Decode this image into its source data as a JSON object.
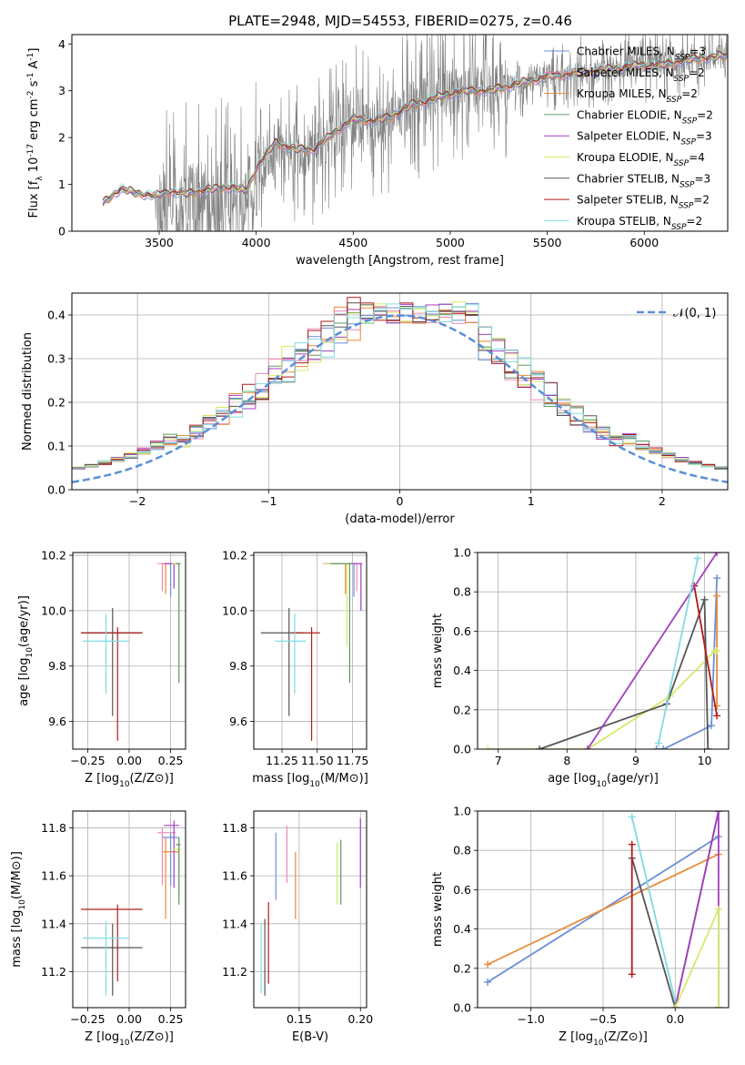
{
  "figure": {
    "title": "PLATE=2948, MJD=54553, FIBERID=0275, z=0.46"
  },
  "model_legend": [
    {
      "name": "Chabrier MILES",
      "nssp": "3",
      "color": "#6a8fd8"
    },
    {
      "name": "Salpeter MILES",
      "nssp": "2",
      "color": "#ee8ab6"
    },
    {
      "name": "Kroupa MILES",
      "nssp": "2",
      "color": "#ea8a3a"
    },
    {
      "name": "Chabrier ELODIE",
      "nssp": "2",
      "color": "#5e9a5e"
    },
    {
      "name": "Salpeter ELODIE",
      "nssp": "3",
      "color": "#a33fbf"
    },
    {
      "name": "Kroupa ELODIE",
      "nssp": "4",
      "color": "#d7e86a"
    },
    {
      "name": "Chabrier STELIB",
      "nssp": "3",
      "color": "#555555"
    },
    {
      "name": "Salpeter STELIB",
      "nssp": "2",
      "color": "#b01c1c"
    },
    {
      "name": "Kroupa STELIB",
      "nssp": "2",
      "color": "#7fdbe2"
    }
  ],
  "chart_data": [
    {
      "id": "spectrum",
      "type": "line",
      "xlabel": "wavelength [Angstrom, rest frame]",
      "ylabel": "Flux [f_λ 10^-17 erg cm^-2 s^-1 A^-1]",
      "xlim": [
        3050,
        6430
      ],
      "ylim": [
        0,
        4.2
      ],
      "xticks": [
        3500,
        4000,
        4500,
        5000,
        5500,
        6000
      ],
      "yticks": [
        0,
        1,
        2,
        3,
        4
      ],
      "grid": false,
      "legend_position": "top-right",
      "data_series": {
        "name": "data",
        "color": "#808080",
        "x_start": 3210,
        "x_end": 6430
      },
      "model_continuum": {
        "x": [
          3210,
          3300,
          3400,
          3480,
          3550,
          3650,
          3750,
          3800,
          3870,
          3950,
          4000,
          4100,
          4200,
          4300,
          4400,
          4500,
          4600,
          4700,
          4800,
          4900,
          5000,
          5100,
          5200,
          5300,
          5400,
          5500,
          5600,
          5700,
          5800,
          5900,
          6000,
          6100,
          6200,
          6300,
          6430
        ],
        "y": [
          0.6,
          0.9,
          0.8,
          0.75,
          0.85,
          0.8,
          0.9,
          0.9,
          0.95,
          0.85,
          1.35,
          1.9,
          1.75,
          1.75,
          2.1,
          2.4,
          2.35,
          2.45,
          2.7,
          2.8,
          2.95,
          3.0,
          3.0,
          3.1,
          3.2,
          3.3,
          3.35,
          3.4,
          3.45,
          3.5,
          3.55,
          3.55,
          3.65,
          3.7,
          3.75
        ]
      }
    },
    {
      "id": "residuals",
      "type": "histogram",
      "xlabel": "(data-model)/error",
      "ylabel": "Normed distribution",
      "xlim": [
        -2.5,
        2.5
      ],
      "ylim": [
        0,
        0.45
      ],
      "xticks": [
        -2,
        -1,
        0,
        1,
        2
      ],
      "yticks": [
        0.0,
        0.1,
        0.2,
        0.3,
        0.4
      ],
      "grid": true,
      "legend_position": "top-right",
      "normal_curve": {
        "name": "𝒩(0, 1)",
        "color": "#5b8fd8",
        "style": "dashed"
      },
      "bin_start": -2.5,
      "bin_width": 0.1
    },
    {
      "id": "age_vs_Z",
      "type": "errorbar",
      "xlabel": "Z [log10(Z/Z⊙)]",
      "ylabel": "age  [log10(age/yr)]",
      "xlim": [
        -0.34,
        0.34
      ],
      "ylim": [
        9.5,
        10.21
      ],
      "xticks": [
        -0.25,
        0.0,
        0.25
      ],
      "yticks": [
        9.6,
        9.8,
        10.0,
        10.2
      ],
      "grid": true,
      "points": [
        {
          "model": "Chabrier STELIB",
          "x": -0.1,
          "y": 9.92,
          "xerr": [
            0.19,
            0.18
          ],
          "yerr": [
            0.3,
            0.09
          ]
        },
        {
          "model": "Salpeter STELIB",
          "x": -0.07,
          "y": 9.92,
          "xerr": [
            0.22,
            0.15
          ],
          "yerr": [
            0.39,
            0.02
          ]
        },
        {
          "model": "Kroupa STELIB",
          "x": -0.14,
          "y": 9.89,
          "xerr": [
            0.14,
            0.14
          ],
          "yerr": [
            0.19,
            0.1
          ]
        },
        {
          "model": "Chabrier MILES",
          "x": 0.25,
          "y": 10.17,
          "xerr": [
            0.05,
            0.05
          ],
          "yerr": [
            0.12,
            0.0
          ]
        },
        {
          "model": "Kroupa MILES",
          "x": 0.22,
          "y": 10.17,
          "xerr": [
            0.02,
            0.08
          ],
          "yerr": [
            0.11,
            0.0
          ]
        },
        {
          "model": "Salpeter MILES",
          "x": 0.2,
          "y": 10.17,
          "xerr": [
            0.03,
            0.08
          ],
          "yerr": [
            0.1,
            0.0
          ]
        },
        {
          "model": "Salpeter ELODIE",
          "x": 0.27,
          "y": 10.17,
          "xerr": [
            0.06,
            0.03
          ],
          "yerr": [
            0.09,
            0.0
          ]
        },
        {
          "model": "Kroupa ELODIE",
          "x": 0.3,
          "y": 10.17,
          "xerr": [
            0.04,
            0.01
          ],
          "yerr": [
            0.29,
            0.0
          ]
        },
        {
          "model": "Chabrier ELODIE",
          "x": 0.3,
          "y": 10.17,
          "xerr": [
            0.02,
            0.01
          ],
          "yerr": [
            0.43,
            0.0
          ]
        }
      ]
    },
    {
      "id": "age_vs_mass",
      "type": "errorbar",
      "xlabel": "mass [log10(M/M⊙)]",
      "ylabel": "",
      "xlim": [
        11.05,
        11.85
      ],
      "ylim": [
        9.5,
        10.21
      ],
      "xticks": [
        11.25,
        11.5,
        11.75
      ],
      "yticks": [
        9.6,
        9.8,
        10.0,
        10.2
      ],
      "grid": true,
      "points": [
        {
          "model": "Chabrier STELIB",
          "x": 11.3,
          "y": 9.92,
          "xerr": [
            0.2,
            0.1
          ],
          "yerr": [
            0.3,
            0.09
          ]
        },
        {
          "model": "Salpeter STELIB",
          "x": 11.46,
          "y": 9.92,
          "xerr": [
            0.14,
            0.06
          ],
          "yerr": [
            0.39,
            0.02
          ]
        },
        {
          "model": "Kroupa STELIB",
          "x": 11.34,
          "y": 9.89,
          "xerr": [
            0.14,
            0.08
          ],
          "yerr": [
            0.19,
            0.1
          ]
        },
        {
          "model": "Chabrier MILES",
          "x": 11.76,
          "y": 10.17,
          "xerr": [
            0.2,
            0.04
          ],
          "yerr": [
            0.12,
            0.0
          ]
        },
        {
          "model": "Kroupa MILES",
          "x": 11.7,
          "y": 10.17,
          "xerr": [
            0.14,
            0.08
          ],
          "yerr": [
            0.11,
            0.0
          ]
        },
        {
          "model": "Salpeter MILES",
          "x": 11.78,
          "y": 10.17,
          "xerr": [
            0.24,
            0.04
          ],
          "yerr": [
            0.1,
            0.0
          ]
        },
        {
          "model": "Salpeter ELODIE",
          "x": 11.81,
          "y": 10.17,
          "xerr": [
            0.19,
            0.01
          ],
          "yerr": [
            0.17,
            0.0
          ]
        },
        {
          "model": "Kroupa ELODIE",
          "x": 11.71,
          "y": 10.17,
          "xerr": [
            0.16,
            0.02
          ],
          "yerr": [
            0.3,
            0.0
          ]
        },
        {
          "model": "Chabrier ELODIE",
          "x": 11.73,
          "y": 10.17,
          "xerr": [
            0.14,
            0.02
          ],
          "yerr": [
            0.43,
            0.0
          ]
        }
      ]
    },
    {
      "id": "weight_vs_age",
      "type": "line",
      "xlabel": "age  [log10(age/yr)]",
      "ylabel": "mass weight",
      "xlim": [
        6.7,
        10.35
      ],
      "ylim": [
        0,
        1.0
      ],
      "xticks": [
        7,
        8,
        9,
        10
      ],
      "yticks": [
        0.0,
        0.2,
        0.4,
        0.6,
        0.8,
        1.0
      ],
      "grid": true,
      "series": [
        {
          "model": "Chabrier MILES",
          "x": [
            9.3,
            9.4,
            10.1,
            10.18
          ],
          "y": [
            0.0,
            0.0,
            0.12,
            0.87
          ]
        },
        {
          "model": "Kroupa MILES",
          "x": [
            10.18,
            10.18
          ],
          "y": [
            0.22,
            0.78
          ]
        },
        {
          "model": "Kroupa ELODIE",
          "x": [
            6.85,
            8.3,
            9.5,
            10.15,
            10.18
          ],
          "y": [
            0.0,
            0.0,
            0.27,
            0.5,
            0.5
          ]
        },
        {
          "model": "Chabrier STELIB",
          "x": [
            7.6,
            9.45,
            10.0,
            10.05
          ],
          "y": [
            0.0,
            0.23,
            0.76,
            0.0
          ]
        },
        {
          "model": "Salpeter STELIB",
          "x": [
            9.85,
            10.18
          ],
          "y": [
            0.83,
            0.17
          ]
        },
        {
          "model": "Salpeter ELODIE",
          "x": [
            8.3,
            10.18
          ],
          "y": [
            0.0,
            1.0
          ]
        },
        {
          "model": "Kroupa STELIB",
          "x": [
            9.33,
            9.9
          ],
          "y": [
            0.03,
            0.97
          ]
        }
      ]
    },
    {
      "id": "mass_vs_Z",
      "type": "errorbar",
      "xlabel": "Z [log10(Z/Z⊙)]",
      "ylabel": "mass [log10(M/M⊙)]",
      "xlim": [
        -0.34,
        0.34
      ],
      "ylim": [
        11.05,
        11.87
      ],
      "xticks": [
        -0.25,
        0.0,
        0.25
      ],
      "yticks": [
        11.2,
        11.4,
        11.6,
        11.8
      ],
      "grid": true,
      "points": [
        {
          "model": "Chabrier STELIB",
          "x": -0.1,
          "y": 11.3,
          "xerr": [
            0.19,
            0.18
          ],
          "yerr": [
            0.2,
            0.1
          ]
        },
        {
          "model": "Salpeter STELIB",
          "x": -0.07,
          "y": 11.46,
          "xerr": [
            0.22,
            0.15
          ],
          "yerr": [
            0.3,
            0.02
          ]
        },
        {
          "model": "Kroupa STELIB",
          "x": -0.14,
          "y": 11.34,
          "xerr": [
            0.14,
            0.14
          ],
          "yerr": [
            0.24,
            0.07
          ]
        },
        {
          "model": "Chabrier MILES",
          "x": 0.25,
          "y": 11.76,
          "xerr": [
            0.05,
            0.05
          ],
          "yerr": [
            0.2,
            0.02
          ]
        },
        {
          "model": "Kroupa MILES",
          "x": 0.22,
          "y": 11.7,
          "xerr": [
            0.02,
            0.08
          ],
          "yerr": [
            0.28,
            0.06
          ]
        },
        {
          "model": "Salpeter MILES",
          "x": 0.2,
          "y": 11.78,
          "xerr": [
            0.03,
            0.08
          ],
          "yerr": [
            0.22,
            0.02
          ]
        },
        {
          "model": "Salpeter ELODIE",
          "x": 0.27,
          "y": 11.81,
          "xerr": [
            0.06,
            0.03
          ],
          "yerr": [
            0.26,
            0.02
          ]
        },
        {
          "model": "Kroupa ELODIE",
          "x": 0.3,
          "y": 11.71,
          "xerr": [
            0.04,
            0.01
          ],
          "yerr": [
            0.22,
            0.04
          ]
        },
        {
          "model": "Chabrier ELODIE",
          "x": 0.3,
          "y": 11.73,
          "xerr": [
            0.02,
            0.01
          ],
          "yerr": [
            0.25,
            0.03
          ]
        }
      ]
    },
    {
      "id": "mass_vs_ebv",
      "type": "errorbar",
      "xlabel": "E(B-V)",
      "ylabel": "",
      "xlim": [
        0.113,
        0.205
      ],
      "ylim": [
        11.05,
        11.87
      ],
      "xticks": [
        0.15,
        0.2
      ],
      "yticks": [
        11.2,
        11.4,
        11.6,
        11.8
      ],
      "grid": true,
      "points": [
        {
          "model": "Chabrier STELIB",
          "x": 0.122,
          "y": 11.3,
          "yerr": [
            0.2,
            0.12
          ]
        },
        {
          "model": "Salpeter STELIB",
          "x": 0.125,
          "y": 11.35,
          "yerr": [
            0.2,
            0.14
          ]
        },
        {
          "model": "Kroupa STELIB",
          "x": 0.119,
          "y": 11.3,
          "yerr": [
            0.19,
            0.1
          ]
        },
        {
          "model": "Chabrier MILES",
          "x": 0.131,
          "y": 11.7,
          "yerr": [
            0.2,
            0.08
          ]
        },
        {
          "model": "Salpeter MILES",
          "x": 0.14,
          "y": 11.7,
          "yerr": [
            0.13,
            0.11
          ]
        },
        {
          "model": "Kroupa MILES",
          "x": 0.147,
          "y": 11.56,
          "yerr": [
            0.14,
            0.14
          ]
        },
        {
          "model": "Chabrier ELODIE",
          "x": 0.184,
          "y": 11.65,
          "yerr": [
            0.17,
            0.1
          ]
        },
        {
          "model": "Kroupa ELODIE",
          "x": 0.181,
          "y": 11.6,
          "yerr": [
            0.12,
            0.14
          ]
        },
        {
          "model": "Salpeter ELODIE",
          "x": 0.2,
          "y": 11.7,
          "yerr": [
            0.15,
            0.14
          ]
        }
      ]
    },
    {
      "id": "weight_vs_Z",
      "type": "line",
      "xlabel": "Z [log10(Z/Z⊙)]",
      "ylabel": "mass weight",
      "xlim": [
        -1.37,
        0.37
      ],
      "ylim": [
        0,
        1.0
      ],
      "xticks": [
        -1.0,
        -0.5,
        0.0
      ],
      "yticks": [
        0.0,
        0.2,
        0.4,
        0.6,
        0.8,
        1.0
      ],
      "grid": true,
      "series": [
        {
          "model": "Chabrier MILES",
          "x": [
            -1.3,
            0.3
          ],
          "y": [
            0.13,
            0.87
          ]
        },
        {
          "model": "Kroupa MILES",
          "x": [
            -1.3,
            0.3
          ],
          "y": [
            0.22,
            0.78
          ]
        },
        {
          "model": "Kroupa STELIB",
          "x": [
            -0.3,
            0.0
          ],
          "y": [
            0.97,
            0.03
          ]
        },
        {
          "model": "Chabrier STELIB",
          "x": [
            -0.3,
            0.0,
            0.3
          ],
          "y": [
            0.76,
            0.0,
            1.0
          ]
        },
        {
          "model": "Salpeter STELIB",
          "x": [
            -0.3,
            -0.3
          ],
          "y": [
            0.83,
            0.17
          ]
        },
        {
          "model": "Salpeter ELODIE",
          "x": [
            0.0,
            0.3,
            0.3
          ],
          "y": [
            0.0,
            1.0,
            0.0
          ]
        },
        {
          "model": "Kroupa ELODIE",
          "x": [
            0.0,
            0.3,
            0.3
          ],
          "y": [
            0.0,
            0.5,
            0.0
          ]
        }
      ]
    }
  ]
}
